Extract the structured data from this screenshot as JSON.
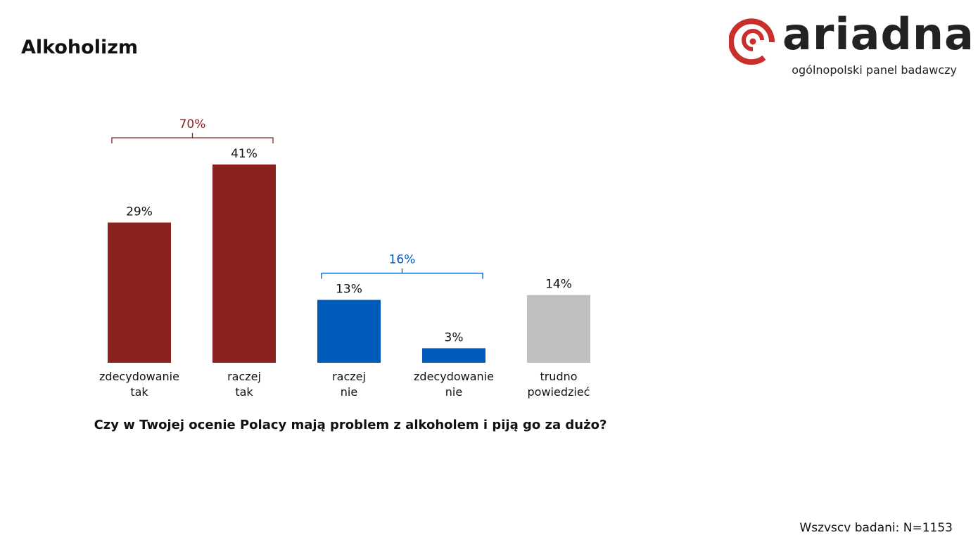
{
  "page": {
    "title": "Alkoholizm",
    "footnote": "Wszvscv badani: N=1153"
  },
  "logo": {
    "wordmark": "ariadna",
    "tagline": "ogólnopolski panel badawczy"
  },
  "colors": {
    "yes": "#8b2220",
    "no": "#005bbb",
    "neutral": "#bfbfbf",
    "logo_red": "#c9302c",
    "text": "#111111"
  },
  "chart_data": {
    "type": "bar",
    "title": "Czy w Twojej ocenie Polacy mają problem z alkoholem i piją go za dużo?",
    "categories": [
      [
        "zdecydowanie",
        "tak"
      ],
      [
        "raczej",
        "tak"
      ],
      [
        "raczej",
        "nie"
      ],
      [
        "zdecydowanie",
        "nie"
      ],
      [
        "trudno",
        "powiedzieć"
      ]
    ],
    "values": [
      29,
      41,
      13,
      3,
      14
    ],
    "value_labels": [
      "29%",
      "41%",
      "13%",
      "3%",
      "14%"
    ],
    "bar_colors": [
      "#8b2220",
      "#8b2220",
      "#005bbb",
      "#005bbb",
      "#bfbfbf"
    ],
    "groups": [
      {
        "label": "70%",
        "value": 70,
        "from": 0,
        "to": 1,
        "color": "#8b2220"
      },
      {
        "label": "16%",
        "value": 16,
        "from": 2,
        "to": 3,
        "color": "#005bbb"
      }
    ],
    "ylim": [
      0,
      41
    ],
    "grid": false,
    "legend": "none",
    "xlabel": "",
    "ylabel": ""
  }
}
